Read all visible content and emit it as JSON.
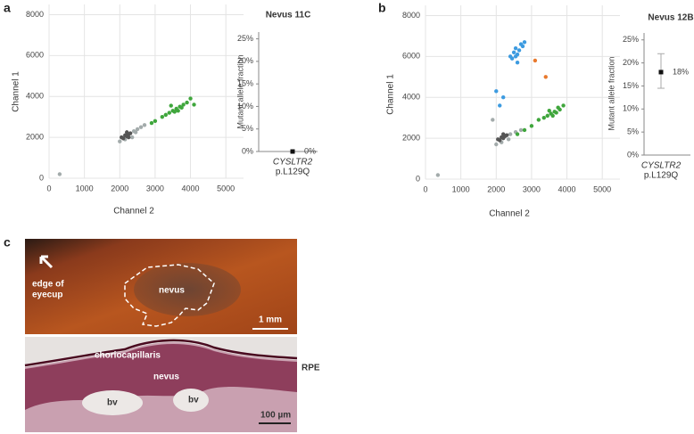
{
  "chart_data": [
    {
      "type": "scatter",
      "xlabel": "Channel 2",
      "ylabel": "Channel 1",
      "xlim": [
        0,
        5500
      ],
      "ylim": [
        0,
        8500
      ],
      "xticks": [
        0,
        1000,
        2000,
        3000,
        4000,
        5000
      ],
      "yticks": [
        0,
        2000,
        4000,
        6000,
        8000
      ],
      "grid": true,
      "series": [
        {
          "color": "#a3abab",
          "x": [
            2400,
            2500,
            2600,
            2700,
            2000,
            2150,
            2350,
            2450,
            300
          ],
          "y": [
            2300,
            2400,
            2500,
            2600,
            1800,
            1900,
            2000,
            2250,
            200
          ]
        },
        {
          "color": "#555555",
          "x": [
            2050,
            2150,
            2200,
            2250,
            2300,
            2100,
            2200,
            2250
          ],
          "y": [
            2000,
            2100,
            2050,
            2150,
            2200,
            1950,
            2250,
            2000
          ]
        },
        {
          "color": "#3fa63c",
          "x": [
            2900,
            3000,
            3200,
            3300,
            3400,
            3500,
            3550,
            3600,
            3650,
            3700,
            3750,
            3800,
            3900,
            4000,
            4100,
            3450
          ],
          "y": [
            2700,
            2800,
            3000,
            3100,
            3200,
            3300,
            3250,
            3400,
            3300,
            3500,
            3450,
            3600,
            3700,
            3900,
            3600,
            3550
          ]
        }
      ]
    },
    {
      "type": "dot",
      "title": "Nevus 11C",
      "ylabel": "Mutant allele fraction",
      "categories": [
        "CYSLTR2"
      ],
      "variants": [
        "p.L129Q"
      ],
      "values": [
        0
      ],
      "value_labels": [
        "0%"
      ],
      "color": "#111111",
      "ylim": [
        0,
        26.5
      ],
      "yticks": [
        {
          "value": 0,
          "label": "0%"
        },
        {
          "value": 5,
          "label": "5%"
        },
        {
          "value": 10,
          "label": "10%"
        },
        {
          "value": 15,
          "label": "15%"
        },
        {
          "value": 20,
          "label": "20%"
        },
        {
          "value": 25,
          "label": "25%"
        }
      ]
    },
    {
      "type": "scatter",
      "xlabel": "Channel 2",
      "ylabel": "Channel 1",
      "xlim": [
        0,
        5500
      ],
      "ylim": [
        0,
        8500
      ],
      "xticks": [
        0,
        1000,
        2000,
        3000,
        4000,
        5000
      ],
      "yticks": [
        0,
        2000,
        4000,
        6000,
        8000
      ],
      "grid": true,
      "series": [
        {
          "color": "#a3abab",
          "x": [
            2400,
            2550,
            2700,
            2000,
            2150,
            2350,
            1900,
            350
          ],
          "y": [
            2200,
            2300,
            2400,
            1700,
            1800,
            1950,
            2900,
            200
          ]
        },
        {
          "color": "#555555",
          "x": [
            2050,
            2150,
            2200,
            2250,
            2300,
            2100,
            2200
          ],
          "y": [
            1950,
            2050,
            2000,
            2100,
            2150,
            1900,
            2200
          ]
        },
        {
          "color": "#3fa63c",
          "x": [
            2800,
            3000,
            3200,
            3350,
            3450,
            3550,
            3650,
            3700,
            3800,
            3900,
            3600,
            3750,
            2600,
            3500
          ],
          "y": [
            2400,
            2600,
            2900,
            3000,
            3100,
            3200,
            3300,
            3250,
            3400,
            3600,
            3100,
            3500,
            2200,
            3350
          ]
        },
        {
          "color": "#3d9be0",
          "x": [
            2400,
            2450,
            2500,
            2550,
            2600,
            2650,
            2700,
            2750,
            2600,
            2550,
            2000,
            2200,
            2100,
            2800
          ],
          "y": [
            6000,
            5900,
            6200,
            6400,
            6100,
            6300,
            6600,
            6500,
            5700,
            6000,
            4300,
            4000,
            3600,
            6700
          ]
        },
        {
          "color": "#e8792d",
          "x": [
            3100,
            3400
          ],
          "y": [
            5800,
            5000
          ]
        }
      ]
    },
    {
      "type": "dot",
      "title": "Nevus 12B",
      "ylabel": "Mutant allele fraction",
      "categories": [
        "CYSLTR2"
      ],
      "variants": [
        "p.L129Q"
      ],
      "values": [
        18
      ],
      "value_labels": [
        "18%"
      ],
      "yerr_low": [
        3.5
      ],
      "yerr_high": [
        4
      ],
      "color": "#111111",
      "ylim": [
        0,
        26.5
      ],
      "yticks": [
        {
          "value": 0,
          "label": "0%"
        },
        {
          "value": 5,
          "label": "5%"
        },
        {
          "value": 10,
          "label": "10%"
        },
        {
          "value": 15,
          "label": "15%"
        },
        {
          "value": 20,
          "label": "20%"
        },
        {
          "value": 25,
          "label": "25%"
        }
      ]
    }
  ],
  "figure": {
    "panel_labels": [
      "a",
      "b",
      "c"
    ],
    "photo": {
      "edge_label": [
        "edge of",
        "eyecup"
      ],
      "nevus": "nevus",
      "scale": "1 mm"
    },
    "histology": {
      "choriocapillaris": "choriocapillaris",
      "nevus": "nevus",
      "rpe": "RPE",
      "vessels": [
        "bv",
        "bv"
      ],
      "scale": "100 µm"
    }
  }
}
